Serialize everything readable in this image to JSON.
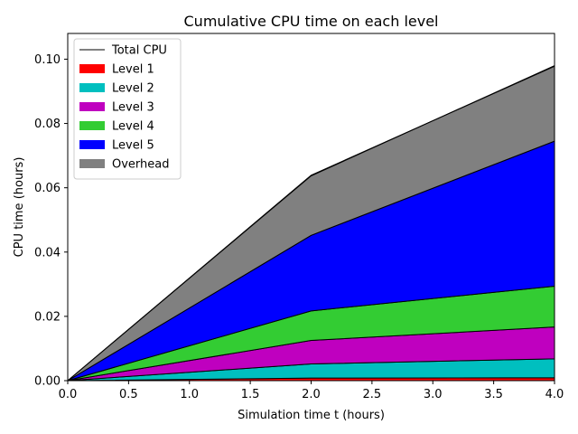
{
  "chart_data": {
    "type": "area",
    "title": "Cumulative CPU time on each level",
    "xlabel": "Simulation time t (hours)",
    "ylabel": "CPU time (hours)",
    "xlim": [
      0.0,
      4.0
    ],
    "ylim": [
      0.0,
      0.108
    ],
    "x_ticks": [
      "0.0",
      "0.5",
      "1.0",
      "1.5",
      "2.0",
      "2.5",
      "3.0",
      "3.5",
      "4.0"
    ],
    "y_ticks": [
      "0.00",
      "0.02",
      "0.04",
      "0.06",
      "0.08",
      "0.10"
    ],
    "grid": false,
    "legend_placement": "upper-left",
    "x": [
      0.0,
      2.0,
      4.0
    ],
    "series": [
      {
        "name": "Level 1",
        "color": "#ff0000",
        "values": [
          0.0,
          0.0008,
          0.0009
        ]
      },
      {
        "name": "Level 2",
        "color": "#00bfbf",
        "values": [
          0.0,
          0.0044,
          0.0059
        ]
      },
      {
        "name": "Level 3",
        "color": "#bf00bf",
        "values": [
          0.0,
          0.0073,
          0.0099
        ]
      },
      {
        "name": "Level 4",
        "color": "#33cc33",
        "values": [
          0.0,
          0.0092,
          0.0127
        ]
      },
      {
        "name": "Level 5",
        "color": "#0000ff",
        "values": [
          0.0,
          0.0235,
          0.0451
        ]
      },
      {
        "name": "Overhead",
        "color": "#808080",
        "values": [
          0.0,
          0.0185,
          0.0235
        ]
      }
    ],
    "total": {
      "name": "Total CPU",
      "color": "#000000",
      "values": [
        0.0,
        0.0639,
        0.0978
      ]
    }
  }
}
